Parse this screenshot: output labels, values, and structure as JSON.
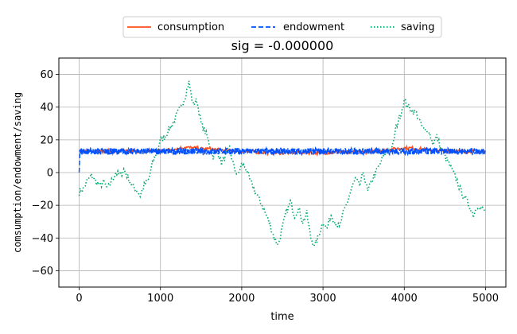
{
  "chart_data": {
    "type": "line",
    "title": "sig = -0.000000",
    "xlabel": "time",
    "ylabel": "comsumption/endowment/saving",
    "xlim": [
      -250,
      5250
    ],
    "ylim": [
      -70,
      70
    ],
    "xticks": [
      0,
      1000,
      2000,
      3000,
      4000,
      5000
    ],
    "yticks": [
      -60,
      -40,
      -20,
      0,
      20,
      40,
      60
    ],
    "xtick_labels": [
      "0",
      "1000",
      "2000",
      "3000",
      "4000",
      "5000"
    ],
    "ytick_labels": [
      "−60",
      "−40",
      "−20",
      "0",
      "20",
      "40",
      "60"
    ],
    "grid": true,
    "legend_position": "top-center",
    "series": [
      {
        "name": "consumption",
        "style": "solid",
        "color": "#ff4f1a",
        "x": [
          0,
          200,
          400,
          600,
          800,
          1000,
          1200,
          1300,
          1400,
          1500,
          1600,
          1800,
          2000,
          2200,
          2400,
          2500,
          2700,
          2900,
          3000,
          3200,
          3400,
          3600,
          3800,
          4000,
          4100,
          4200,
          4400,
          4600,
          4800,
          5000
        ],
        "values": [
          13,
          13,
          13,
          13,
          13,
          13.5,
          14.5,
          15.5,
          15,
          14.5,
          14.5,
          13.5,
          13,
          12.5,
          12,
          12,
          12.5,
          12,
          12,
          12.5,
          12.5,
          13,
          14,
          15,
          15,
          14.5,
          13.5,
          13,
          13,
          13
        ]
      },
      {
        "name": "endowment",
        "style": "dashed",
        "color": "#0050ff",
        "x": [
          0,
          10,
          5000
        ],
        "values": [
          0,
          13,
          13
        ]
      },
      {
        "name": "saving",
        "style": "dotted",
        "color": "#00a86b",
        "x": [
          0,
          50,
          100,
          150,
          200,
          250,
          300,
          350,
          400,
          450,
          500,
          550,
          600,
          650,
          700,
          750,
          800,
          850,
          900,
          950,
          1000,
          1050,
          1100,
          1150,
          1200,
          1250,
          1300,
          1350,
          1400,
          1450,
          1500,
          1550,
          1600,
          1650,
          1700,
          1750,
          1800,
          1850,
          1900,
          1950,
          2000,
          2050,
          2100,
          2150,
          2200,
          2250,
          2300,
          2350,
          2400,
          2450,
          2500,
          2550,
          2600,
          2650,
          2700,
          2750,
          2800,
          2850,
          2900,
          2950,
          3000,
          3050,
          3100,
          3150,
          3200,
          3250,
          3300,
          3350,
          3400,
          3450,
          3500,
          3550,
          3600,
          3650,
          3700,
          3750,
          3800,
          3850,
          3900,
          3950,
          4000,
          4050,
          4100,
          4150,
          4200,
          4250,
          4300,
          4350,
          4400,
          4450,
          4500,
          4550,
          4600,
          4650,
          4700,
          4750,
          4800,
          4850,
          4900,
          4950,
          5000
        ],
        "values": [
          -12,
          -10,
          -5,
          -2,
          -5,
          -8,
          -6,
          -10,
          -5,
          0,
          -2,
          2,
          -3,
          -8,
          -10,
          -14,
          -8,
          -5,
          5,
          12,
          20,
          22,
          26,
          30,
          35,
          40,
          46,
          55,
          42,
          44,
          30,
          25,
          18,
          10,
          14,
          6,
          10,
          15,
          4,
          -2,
          5,
          3,
          -5,
          -10,
          -15,
          -20,
          -26,
          -32,
          -40,
          -44,
          -34,
          -24,
          -18,
          -26,
          -22,
          -30,
          -25,
          -40,
          -45,
          -38,
          -30,
          -34,
          -26,
          -30,
          -34,
          -25,
          -18,
          -10,
          -4,
          -8,
          0,
          -12,
          -5,
          0,
          5,
          10,
          15,
          14,
          28,
          35,
          44,
          40,
          38,
          36,
          30,
          25,
          26,
          18,
          22,
          15,
          10,
          5,
          0,
          -5,
          -12,
          -16,
          -20,
          -26,
          -20,
          -22,
          -24
        ]
      }
    ]
  }
}
